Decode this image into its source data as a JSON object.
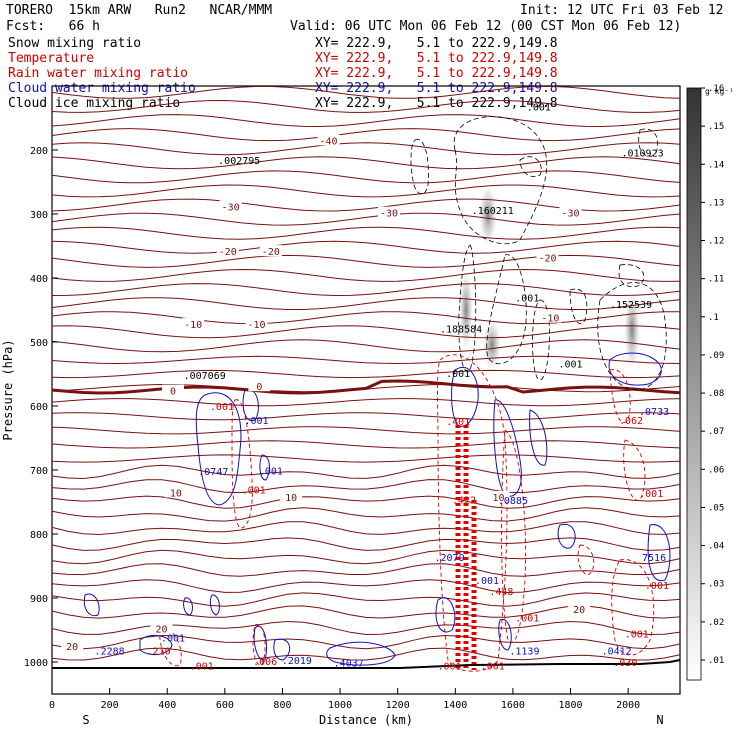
{
  "header": {
    "model": "TORERO  15km ARW   Run2   NCAR/MMM",
    "init": "Init: 12 UTC Fri 03 Feb 12",
    "fcst": "Fcst:   66 h",
    "valid": "Valid: 06 UTC Mon 06 Feb 12 (00 CST Mon 06 Feb 12)"
  },
  "legend": [
    {
      "name": "Snow mixing ratio",
      "xy": "XY= 222.9,   5.1 to 222.9,149.8",
      "color": "#000000"
    },
    {
      "name": "Temperature",
      "xy": "XY= 222.9,   5.1 to 222.9,149.8",
      "color": "#d00000"
    },
    {
      "name": "Rain water mixing ratio",
      "xy": "XY= 222.9,   5.1 to 222.9,149.8",
      "color": "#d00000"
    },
    {
      "name": "Cloud water mixing ratio",
      "xy": "XY= 222.9,   5.1 to 222.9,149.8",
      "color": "#1010c0"
    },
    {
      "name": "Cloud ice mixing ratio",
      "xy": "XY= 222.9,   5.1 to 222.9,149.8",
      "color": "#000000"
    }
  ],
  "chart_data": {
    "type": "cross-section",
    "xlabel": "Distance (km)",
    "ylabel": "Pressure (hPa)",
    "x_ticks": [
      0,
      200,
      400,
      600,
      800,
      1000,
      1200,
      1400,
      1600,
      1800,
      2000
    ],
    "y_ticks": [
      200,
      300,
      400,
      500,
      600,
      700,
      800,
      900,
      1000
    ],
    "xlim": [
      0,
      2180
    ],
    "ylim": [
      1050,
      100
    ],
    "left_end": "S",
    "right_end": "N",
    "colorbar": {
      "unit": "g kg⁻¹",
      "labels": [
        ".01",
        ".02",
        ".03",
        ".04",
        ".05",
        ".06",
        ".07",
        ".08",
        ".09",
        ".1",
        ".11",
        ".12",
        ".13",
        ".14",
        ".15",
        ".16"
      ]
    },
    "temperature_labels": [
      {
        "text": "-40",
        "x": 960,
        "p": 185
      },
      {
        "text": "-30",
        "x": 620,
        "p": 288
      },
      {
        "text": "-30",
        "x": 1170,
        "p": 298
      },
      {
        "text": "-30",
        "x": 1800,
        "p": 298
      },
      {
        "text": "-20",
        "x": 610,
        "p": 358
      },
      {
        "text": "-20",
        "x": 760,
        "p": 358
      },
      {
        "text": "-20",
        "x": 1720,
        "p": 368
      },
      {
        "text": "-10",
        "x": 490,
        "p": 472
      },
      {
        "text": "-10",
        "x": 710,
        "p": 472
      },
      {
        "text": "-10",
        "x": 1730,
        "p": 462
      },
      {
        "text": "0",
        "x": 420,
        "p": 576
      },
      {
        "text": "0",
        "x": 720,
        "p": 569
      },
      {
        "text": "10",
        "x": 430,
        "p": 735
      },
      {
        "text": "10",
        "x": 830,
        "p": 742
      },
      {
        "text": "10",
        "x": 1550,
        "p": 742
      },
      {
        "text": "20",
        "x": 380,
        "p": 948
      },
      {
        "text": "20",
        "x": 1830,
        "p": 917
      },
      {
        "text": "20",
        "x": 70,
        "p": 975
      }
    ],
    "annotations": [
      {
        "text": ".001",
        "x": 1690,
        "p": 138,
        "color": "#000000"
      },
      {
        "text": ".002795",
        "x": 650,
        "p": 222,
        "color": "#000000"
      },
      {
        "text": ".010923",
        "x": 2050,
        "p": 210,
        "color": "#000000"
      },
      {
        "text": ".160211",
        "x": 1530,
        "p": 300,
        "color": "#000000"
      },
      {
        "text": ".001",
        "x": 1650,
        "p": 437,
        "color": "#000000"
      },
      {
        "text": ".152539",
        "x": 2010,
        "p": 447,
        "color": "#000000"
      },
      {
        "text": ".188584",
        "x": 1420,
        "p": 485,
        "color": "#000000"
      },
      {
        "text": ".001",
        "x": 1800,
        "p": 540,
        "color": "#000000"
      },
      {
        "text": ".007069",
        "x": 530,
        "p": 558,
        "color": "#000000"
      },
      {
        "text": ".001",
        "x": 1410,
        "p": 555,
        "color": "#000000"
      },
      {
        "text": ".001",
        "x": 590,
        "p": 606,
        "color": "#d00000"
      },
      {
        "text": ".001",
        "x": 710,
        "p": 628,
        "color": "#1010c0"
      },
      {
        "text": ".0733",
        "x": 2090,
        "p": 614,
        "color": "#1010c0"
      },
      {
        "text": ".062",
        "x": 2010,
        "p": 628,
        "color": "#d00000"
      },
      {
        "text": ".401",
        "x": 1410,
        "p": 630,
        "color": "#d00000"
      },
      {
        "text": ".0747",
        "x": 560,
        "p": 708,
        "color": "#1010c0"
      },
      {
        "text": ".001",
        "x": 760,
        "p": 707,
        "color": "#1010c0"
      },
      {
        "text": ".001",
        "x": 700,
        "p": 737,
        "color": "#d00000"
      },
      {
        "text": ".422",
        "x": 1430,
        "p": 752,
        "color": "#d00000"
      },
      {
        "text": ".0885",
        "x": 1600,
        "p": 753,
        "color": "#1010c0"
      },
      {
        "text": ".001",
        "x": 2080,
        "p": 742,
        "color": "#d00000"
      },
      {
        "text": ".2079",
        "x": 1380,
        "p": 842,
        "color": "#1010c0"
      },
      {
        "text": "7516",
        "x": 2090,
        "p": 842,
        "color": "#1010c0"
      },
      {
        "text": ".001",
        "x": 1510,
        "p": 878,
        "color": "#1010c0"
      },
      {
        "text": ".448",
        "x": 1560,
        "p": 895,
        "color": "#d00000"
      },
      {
        "text": ".001",
        "x": 2100,
        "p": 886,
        "color": "#d00000"
      },
      {
        "text": ".001",
        "x": 1650,
        "p": 937,
        "color": "#d00000"
      },
      {
        "text": ".001",
        "x": 2030,
        "p": 962,
        "color": "#d00000"
      },
      {
        "text": ".001",
        "x": 420,
        "p": 968,
        "color": "#1010c0"
      },
      {
        "text": ".2288",
        "x": 200,
        "p": 988,
        "color": "#1010c0"
      },
      {
        "text": ".210",
        "x": 370,
        "p": 988,
        "color": "#d00000"
      },
      {
        "text": ".006",
        "x": 740,
        "p": 1005,
        "color": "#d00000"
      },
      {
        "text": ".2019",
        "x": 850,
        "p": 1003,
        "color": "#1010c0"
      },
      {
        "text": ".4037",
        "x": 1030,
        "p": 1007,
        "color": "#1010c0"
      },
      {
        "text": ".1139",
        "x": 1640,
        "p": 988,
        "color": "#1010c0"
      },
      {
        "text": ".0412",
        "x": 1960,
        "p": 988,
        "color": "#1010c0"
      },
      {
        "text": ".030",
        "x": 1990,
        "p": 1006,
        "color": "#d00000"
      },
      {
        "text": ".001",
        "x": 520,
        "p": 1012,
        "color": "#d00000"
      },
      {
        "text": ".001",
        "x": 1380,
        "p": 1012,
        "color": "#d00000"
      },
      {
        "text": ".001",
        "x": 1530,
        "p": 1012,
        "color": "#d00000"
      }
    ]
  }
}
